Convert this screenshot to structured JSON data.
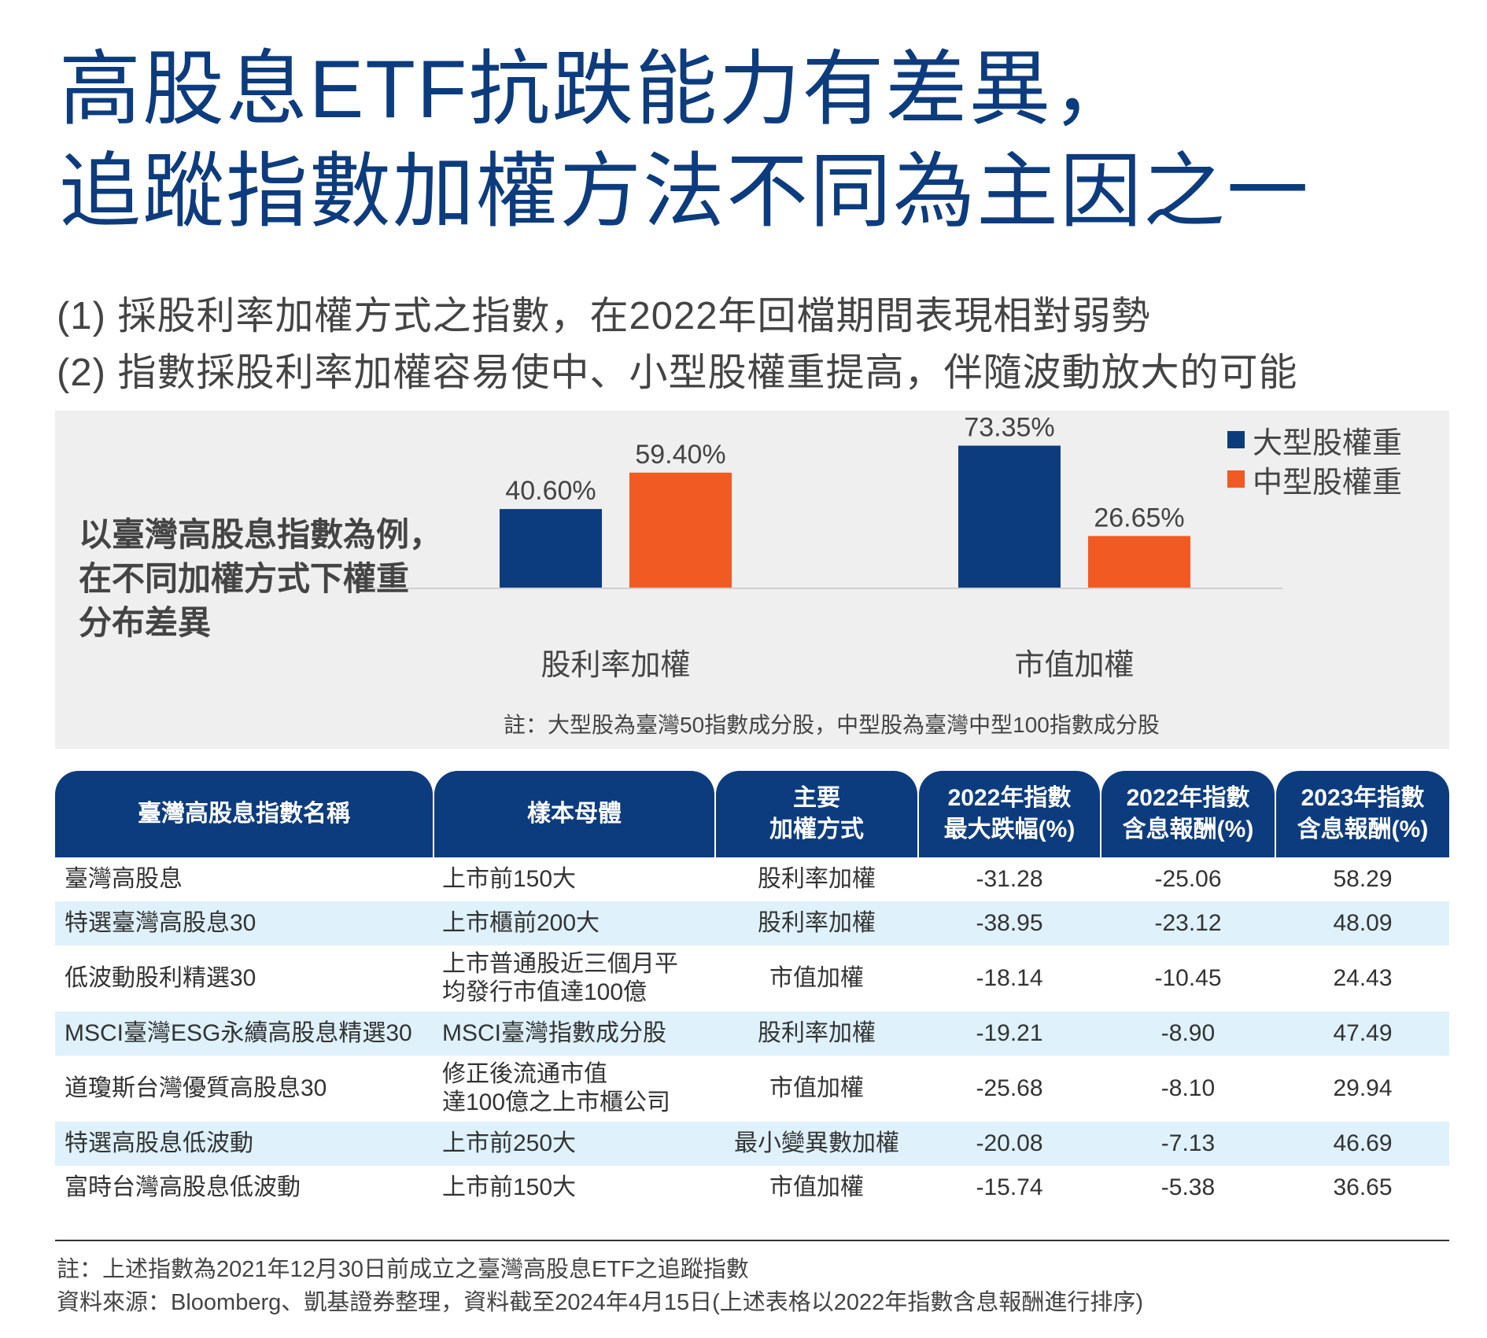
{
  "title": {
    "line1": "高股息ETF抗跌能力有差異，",
    "line2": "追蹤指數加權方法不同為主因之一"
  },
  "subtitle": {
    "line1": "(1) 採股利率加權方式之指數，在2022年回檔期間表現相對弱勢",
    "line2": "(2) 指數採股利率加權容易使中、小型股權重提高，伴隨波動放大的可能"
  },
  "chart_caption": {
    "line1": "以臺灣高股息指數為例，",
    "line2": "在不同加權方式下權重",
    "line3": "分布差異"
  },
  "chart_data": {
    "type": "bar",
    "categories": [
      "股利率加權",
      "市值加權"
    ],
    "series": [
      {
        "name": "大型股權重",
        "color": "#0d3c7e",
        "values": [
          40.6,
          73.35
        ],
        "labels": [
          "40.60%",
          "73.35%"
        ]
      },
      {
        "name": "中型股權重",
        "color": "#f15a22",
        "values": [
          59.4,
          26.65
        ],
        "labels": [
          "59.40%",
          "26.65%"
        ]
      }
    ],
    "ylim": [
      0,
      100
    ],
    "legend": "top-right",
    "grid": false,
    "note": "註：大型股為臺灣50指數成分股，中型股為臺灣中型100指數成分股"
  },
  "table": {
    "headers": [
      "臺灣高股息指數名稱",
      "樣本母體",
      "主要\n加權方式",
      "2022年指數\n最大跌幅(%)",
      "2022年指數\n含息報酬(%)",
      "2023年指數\n含息報酬(%)"
    ],
    "rows": [
      [
        "臺灣高股息",
        "上市前150大",
        "股利率加權",
        "-31.28",
        "-25.06",
        "58.29"
      ],
      [
        "特選臺灣高股息30",
        "上市櫃前200大",
        "股利率加權",
        "-38.95",
        "-23.12",
        "48.09"
      ],
      [
        "低波動股利精選30",
        "上市普通股近三個月平\n均發行市值達100億",
        "市值加權",
        "-18.14",
        "-10.45",
        "24.43"
      ],
      [
        "MSCI臺灣ESG永續高股息精選30",
        "MSCI臺灣指數成分股",
        "股利率加權",
        "-19.21",
        "-8.90",
        "47.49"
      ],
      [
        "道瓊斯台灣優質高股息30",
        "修正後流通市值\n達100億之上市櫃公司",
        "市值加權",
        "-25.68",
        "-8.10",
        "29.94"
      ],
      [
        "特選高股息低波動",
        "上市前250大",
        "最小變異數加權",
        "-20.08",
        "-7.13",
        "46.69"
      ],
      [
        "富時台灣高股息低波動",
        "上市前150大",
        "市值加權",
        "-15.74",
        "-5.38",
        "36.65"
      ]
    ]
  },
  "footnotes": {
    "note": "註：上述指數為2021年12月30日前成立之臺灣高股息ETF之追蹤指數",
    "source": "資料來源：Bloomberg、凱基證券整理，資料截至2024年4月15日(上述表格以2022年指數含息報酬進行排序)"
  },
  "colors": {
    "title": "#0d3c7e",
    "header_bg": "#0d3c7e",
    "row_alt_bg": "#dff1fb",
    "panel_bg": "#efefef",
    "large_cap": "#0d3c7e",
    "mid_cap": "#f15a22"
  }
}
